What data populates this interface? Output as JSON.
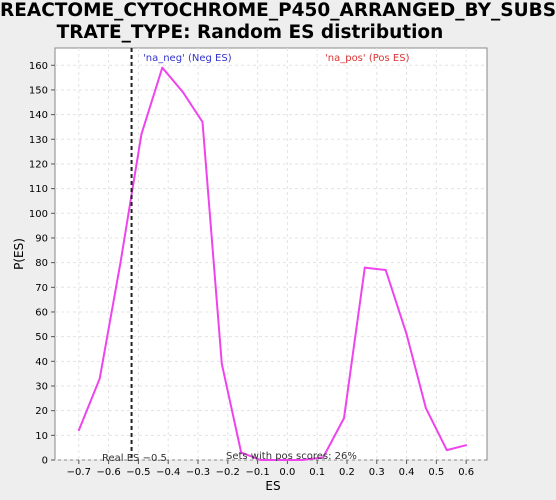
{
  "chart_data": {
    "type": "line",
    "title_line1": "REACTOME_CYTOCHROME_P450_ARRANGED_BY_SUBS",
    "title_line2": "TRATE_TYPE: Random ES distribution",
    "xlabel": "ES",
    "ylabel": "P(ES)",
    "xlim": [
      -0.78,
      0.67
    ],
    "ylim": [
      0,
      167
    ],
    "xticks": [
      -0.7,
      -0.6,
      -0.5,
      -0.4,
      -0.3,
      -0.2,
      -0.1,
      0.0,
      0.1,
      0.2,
      0.3,
      0.4,
      0.5,
      0.6
    ],
    "xtick_labels": [
      "−0.7",
      "−0.6",
      "−0.5",
      "−0.4",
      "−0.3",
      "−0.2",
      "−0.1",
      "0.0",
      "0.1",
      "0.2",
      "0.3",
      "0.4",
      "0.5",
      "0.6"
    ],
    "yticks": [
      0,
      10,
      20,
      30,
      40,
      50,
      60,
      70,
      80,
      90,
      100,
      110,
      120,
      130,
      140,
      150,
      160
    ],
    "grid": true,
    "series": [
      {
        "color": "#ee44ee",
        "x": [
          -0.7,
          -0.63,
          -0.56,
          -0.49,
          -0.42,
          -0.35,
          -0.285,
          -0.22,
          -0.155,
          -0.09,
          -0.03,
          0.05,
          0.12,
          0.19,
          0.26,
          0.33,
          0.4,
          0.465,
          0.535,
          0.6
        ],
        "y": [
          12,
          33,
          80,
          132,
          159,
          149,
          137,
          39,
          3,
          0,
          0,
          0,
          1,
          17,
          78,
          77,
          51,
          21,
          4,
          6
        ]
      }
    ],
    "real_es": {
      "x": -0.523,
      "label": "Real ES −0.5"
    },
    "neg_label": "'na_neg' (Neg ES)",
    "pos_label": "'na_pos' (Pos ES)",
    "neg_color": "#3333cc",
    "pos_color": "#dd3333",
    "footer": "Sets with pos scores: 26%"
  }
}
